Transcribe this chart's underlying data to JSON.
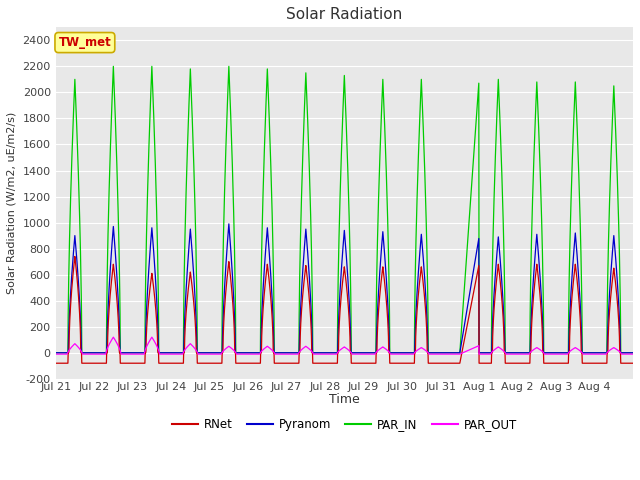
{
  "title": "Solar Radiation",
  "ylabel": "Solar Radiation (W/m2, uE/m2/s)",
  "xlabel": "Time",
  "ylim": [
    -200,
    2500
  ],
  "yticks": [
    -200,
    0,
    200,
    400,
    600,
    800,
    1000,
    1200,
    1400,
    1600,
    1800,
    2000,
    2200,
    2400
  ],
  "x_tick_labels": [
    "Jul 21",
    "Jul 22",
    "Jul 23",
    "Jul 24",
    "Jul 25",
    "Jul 26",
    "Jul 27",
    "Jul 28",
    "Jul 29",
    "Jul 30",
    "Jul 31",
    "Aug 1",
    "Aug 2",
    "Aug 3",
    "Aug 4"
  ],
  "colors": {
    "RNet": "#cc0000",
    "Pyranom": "#0000cc",
    "PAR_IN": "#00cc00",
    "PAR_OUT": "#ff00ff"
  },
  "fig_bg": "#ffffff",
  "plot_bg": "#e8e8e8",
  "grid_color": "#ffffff",
  "annotation_text": "TW_met",
  "annotation_bg": "#ffff99",
  "annotation_border": "#ccaa00",
  "n_days": 15,
  "pts_per_day": 144,
  "par_in_peaks": [
    2100,
    2200,
    2200,
    2180,
    2200,
    2180,
    2150,
    2130,
    2100,
    2100,
    0,
    2100,
    2080,
    2080,
    2050
  ],
  "pyr_peaks": [
    900,
    970,
    960,
    950,
    990,
    960,
    950,
    940,
    930,
    910,
    0,
    890,
    910,
    920,
    900
  ],
  "rnet_peaks": [
    740,
    680,
    610,
    620,
    700,
    680,
    670,
    660,
    660,
    660,
    0,
    680,
    680,
    680,
    650
  ],
  "par_out_peaks": [
    80,
    130,
    130,
    80,
    60,
    60,
    60,
    55,
    55,
    50,
    50,
    55,
    50,
    50,
    50
  ],
  "night_rnet": -80,
  "night_par_out": -10,
  "pulse_halfwidth": 0.18,
  "figsize": [
    6.4,
    4.8
  ],
  "dpi": 100
}
